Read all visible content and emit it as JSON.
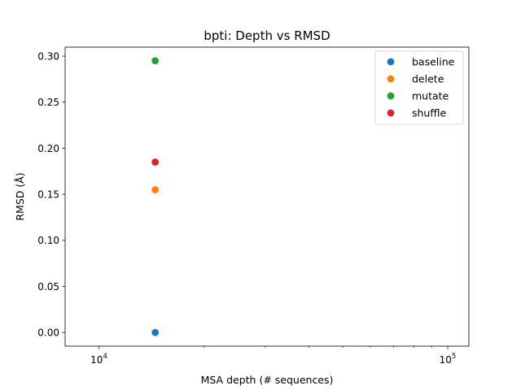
{
  "chart_data": {
    "type": "scatter",
    "title": "bpti: Depth vs RMSD",
    "xlabel": "MSA depth (# sequences)",
    "ylabel": "RMSD (Å)",
    "xscale": "log",
    "xlim": [
      8000,
      115000
    ],
    "ylim": [
      -0.0148,
      0.3098
    ],
    "x_major_ticks": [
      10000,
      100000
    ],
    "x_major_tick_labels": [
      [
        "10",
        "4"
      ],
      [
        "10",
        "5"
      ]
    ],
    "x_minor_ticks": [
      20000,
      30000,
      40000,
      50000,
      60000,
      70000,
      80000,
      90000
    ],
    "y_ticks": [
      0.0,
      0.05,
      0.1,
      0.15,
      0.2,
      0.25,
      0.3
    ],
    "y_tick_labels": [
      "0.00",
      "0.05",
      "0.10",
      "0.15",
      "0.20",
      "0.25",
      "0.30"
    ],
    "grid": false,
    "legend_position": "top-right",
    "series": [
      {
        "name": "baseline",
        "color": "#1f77b4",
        "points": [
          {
            "x": 14500,
            "y": 0.0
          }
        ]
      },
      {
        "name": "delete",
        "color": "#ff7f0e",
        "points": [
          {
            "x": 14500,
            "y": 0.155
          }
        ]
      },
      {
        "name": "mutate",
        "color": "#2ca02c",
        "points": [
          {
            "x": 14500,
            "y": 0.295
          }
        ]
      },
      {
        "name": "shuffle",
        "color": "#d62728",
        "points": [
          {
            "x": 14500,
            "y": 0.185
          }
        ]
      }
    ]
  }
}
